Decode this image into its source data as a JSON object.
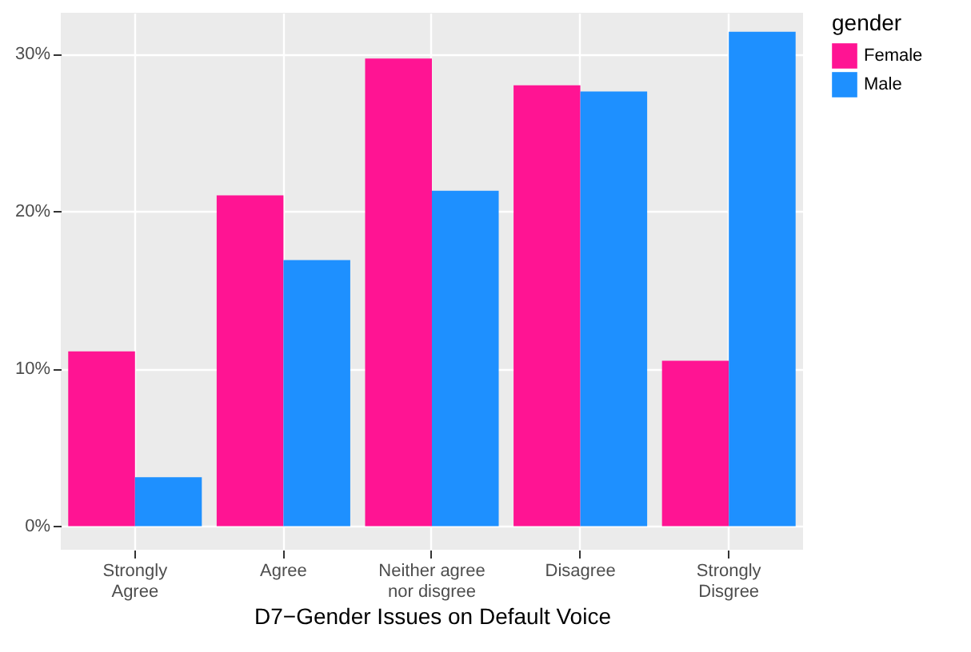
{
  "chart_data": {
    "type": "bar",
    "xlabel": "D7−Gender Issues on Default Voice",
    "legend_title": "gender",
    "categories": [
      "Strongly\nAgree",
      "Agree",
      "Neither agree\nnor disgree",
      "Disagree",
      "Strongly\nDisgree"
    ],
    "series": [
      {
        "name": "Female",
        "color": "#ff1493",
        "values": [
          11.1,
          21.0,
          29.7,
          28.0,
          10.5
        ]
      },
      {
        "name": "Male",
        "color": "#1e90ff",
        "values": [
          3.1,
          16.9,
          21.3,
          27.6,
          31.4
        ]
      }
    ],
    "ylim": [
      -1.5,
      32.6
    ],
    "yticks": [
      {
        "value": 0,
        "label": "0%"
      },
      {
        "value": 10,
        "label": "10%"
      },
      {
        "value": 20,
        "label": "20%"
      },
      {
        "value": 30,
        "label": "30%"
      }
    ],
    "grid": true,
    "legend": "right"
  }
}
